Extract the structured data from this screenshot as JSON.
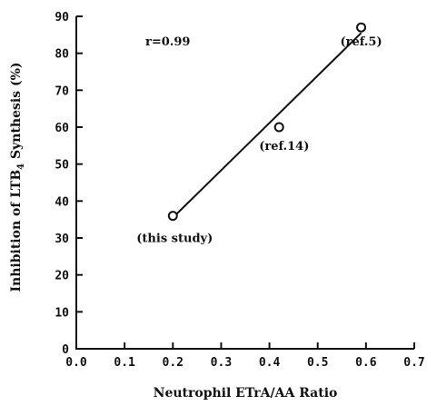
{
  "chart_data": {
    "type": "scatter",
    "title": "",
    "xlabel": "Neutrophil ETrA/AA Ratio",
    "ylabel": "Inhibition of LTB",
    "ylabel_subscript": "4",
    "ylabel_suffix": " Synthesis (%)",
    "xlim": [
      0.0,
      0.7
    ],
    "ylim": [
      0,
      90
    ],
    "x_ticks": [
      "0.0",
      "0.1",
      "0.2",
      "0.3",
      "0.4",
      "0.5",
      "0.6",
      "0.7"
    ],
    "y_ticks": [
      "0",
      "10",
      "20",
      "30",
      "40",
      "50",
      "60",
      "70",
      "80",
      "90"
    ],
    "grid": false,
    "points": [
      {
        "x": 0.2,
        "y": 36,
        "label": "(this study)"
      },
      {
        "x": 0.42,
        "y": 60,
        "label": "(ref.14)"
      },
      {
        "x": 0.59,
        "y": 87,
        "label": "(ref.5)"
      }
    ],
    "fit_line": {
      "x": [
        0.2,
        0.59
      ],
      "y": [
        35.5,
        85.5
      ]
    },
    "annotation": "r=0.99"
  }
}
